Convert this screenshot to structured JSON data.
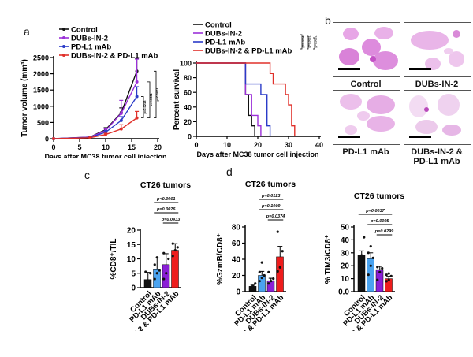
{
  "panels": {
    "a": "a",
    "b": "b",
    "c": "c",
    "d": "d"
  },
  "colors": {
    "control": "#111111",
    "dubs": "#9b30d9",
    "pdl1": "#2a3bc8",
    "combo": "#e0302a",
    "pdl1_bar": "#4aa3f0",
    "dubs_bar": "#8a1fd6",
    "combo_bar": "#ee1c1c"
  },
  "micrographs": {
    "labels": [
      "Control",
      "DUBs-IN-2",
      "PD-L1 mAb",
      "DUBs-IN-2 &\nPD-L1 mAb"
    ],
    "label_lines": [
      [
        "Control"
      ],
      [
        "DUBs-IN-2"
      ],
      [
        "PD-L1 mAb"
      ],
      [
        "DUBs-IN-2 &",
        "PD-L1 mAb"
      ]
    ]
  },
  "chart_data": [
    {
      "id": "tumor-volume",
      "type": "line",
      "title": "",
      "xlabel": "Days after MC38 tumor cell injection",
      "ylabel": "Tumor volume (mm³)",
      "xlim": [
        0,
        20
      ],
      "ylim": [
        0,
        2500
      ],
      "xticks": [
        0,
        5,
        10,
        15,
        20
      ],
      "yticks": [
        0,
        500,
        1000,
        1500,
        2000,
        2500
      ],
      "x": [
        0,
        7,
        10,
        13,
        16
      ],
      "legend": "top-left",
      "series": [
        {
          "name": "Control",
          "values": [
            0,
            50,
            280,
            800,
            2080
          ],
          "errors": [
            0,
            20,
            60,
            150,
            400
          ]
        },
        {
          "name": "DUBs-IN-2",
          "values": [
            0,
            50,
            250,
            780,
            1750
          ],
          "errors": [
            0,
            20,
            60,
            400,
            700
          ]
        },
        {
          "name": "PD-L1 mAb",
          "values": [
            0,
            40,
            200,
            560,
            1300
          ],
          "errors": [
            0,
            15,
            50,
            120,
            300
          ]
        },
        {
          "name": "DUBs-IN-2 & PD-L1 mAb",
          "values": [
            0,
            30,
            130,
            300,
            640
          ],
          "errors": [
            0,
            10,
            40,
            130,
            200
          ]
        }
      ],
      "significance": [
        "p=0.0218",
        "p=0.0001",
        "p<0.0001"
      ]
    },
    {
      "id": "survival",
      "type": "line",
      "title": "",
      "xlabel": "Days after MC38 tumor cell injection",
      "ylabel": "Percent survival",
      "xlim": [
        0,
        40
      ],
      "ylim": [
        0,
        100
      ],
      "xticks": [
        0,
        10,
        20,
        30,
        40
      ],
      "yticks": [
        0,
        20,
        40,
        60,
        80,
        100
      ],
      "legend": "top",
      "series": [
        {
          "name": "Control",
          "steps": [
            [
              0,
              100
            ],
            [
              16,
              57
            ],
            [
              17,
              28.6
            ],
            [
              18,
              14.3
            ],
            [
              19,
              0
            ]
          ]
        },
        {
          "name": "DUBs-IN-2",
          "steps": [
            [
              0,
              100
            ],
            [
              16,
              57
            ],
            [
              18,
              28.6
            ],
            [
              20,
              14.3
            ],
            [
              21,
              0
            ]
          ]
        },
        {
          "name": "PD-L1 mAb",
          "steps": [
            [
              0,
              100
            ],
            [
              16,
              71.4
            ],
            [
              21,
              57
            ],
            [
              23,
              14.3
            ],
            [
              24,
              0
            ]
          ]
        },
        {
          "name": "DUBs-IN-2 & PD-L1 mAb",
          "steps": [
            [
              0,
              100
            ],
            [
              24,
              85.7
            ],
            [
              25,
              71.4
            ],
            [
              29,
              57
            ],
            [
              30,
              42.9
            ],
            [
              31,
              14.3
            ],
            [
              32,
              0
            ]
          ]
        }
      ],
      "significance": [
        "p=0.0004",
        "p=0.0001",
        "p=0.0001"
      ]
    },
    {
      "id": "cd8-til",
      "type": "bar",
      "title": "CT26 tumors",
      "ylabel": "%CD8⁺/TIL",
      "ylim": [
        0,
        20
      ],
      "yticks": [
        0,
        5,
        10,
        15,
        20
      ],
      "categories": [
        "Control",
        "PD-L1 mAb",
        "DUBs-IN-2",
        "DUBs-IN-2 & PD-L1 mAb"
      ],
      "values": [
        2.8,
        6.5,
        8.0,
        13.0
      ],
      "errors": [
        2.5,
        3.8,
        3.8,
        2.3
      ],
      "points": [
        [
          1,
          2,
          5,
          5.5
        ],
        [
          3,
          5,
          6,
          8,
          10.5
        ],
        [
          3,
          5,
          10,
          12
        ],
        [
          11,
          13,
          14,
          15.3
        ]
      ],
      "significance": [
        {
          "label": "p<0.0001",
          "from": 1,
          "to": 3
        },
        {
          "label": "p=0.0076",
          "from": 1,
          "to": 3
        },
        {
          "label": "p=0.0433",
          "from": 2,
          "to": 3
        }
      ]
    },
    {
      "id": "gzmb-cd8",
      "type": "bar",
      "title": "CT26 tumors",
      "ylabel": "%GzmB/CD8⁺",
      "ylim": [
        0,
        80
      ],
      "yticks": [
        0,
        20,
        40,
        60,
        80
      ],
      "categories": [
        "Control",
        "PD-L1 mAb",
        "DUBs-IN-2",
        "DUBs-IN-2 & PD-L1 mAb"
      ],
      "values": [
        6.5,
        20,
        13.5,
        43
      ],
      "errors": [
        1.5,
        5,
        3,
        13
      ],
      "points": [
        [
          5,
          7,
          10
        ],
        [
          13,
          17,
          20,
          24,
          36
        ],
        [
          10,
          13,
          16,
          24
        ],
        [
          25,
          30,
          50,
          74
        ]
      ],
      "significance": [
        {
          "label": "p=0.0123",
          "from": 1,
          "to": 3
        },
        {
          "label": "p=0.1009",
          "from": 1,
          "to": 3
        },
        {
          "label": "p=0.0374",
          "from": 2,
          "to": 3
        }
      ]
    },
    {
      "id": "tim3-cd8",
      "type": "bar",
      "title": "CT26 tumors",
      "ylabel": "% TIM3/CD8⁺",
      "ylim": [
        0,
        50
      ],
      "yticks": [
        0,
        10,
        20,
        30,
        40,
        50
      ],
      "ytick_labels": [
        "0.0",
        "10",
        "20",
        "30",
        "40",
        "50"
      ],
      "categories": [
        "Control",
        "PD-L1 mAb",
        "DUBs-IN-2",
        "DUBs-IN-2 & PD-L1 mAb"
      ],
      "values": [
        28,
        25.5,
        17,
        10
      ],
      "errors": [
        3.5,
        4.5,
        2.5,
        1.8
      ],
      "points": [
        [
          20,
          28,
          42
        ],
        [
          13,
          20,
          26,
          30,
          35
        ],
        [
          9,
          15,
          18,
          19
        ],
        [
          8,
          9,
          12,
          13,
          14
        ]
      ],
      "significance": [
        {
          "label": "p=0.0037",
          "from": 0,
          "to": 3
        },
        {
          "label": "p=0.0095",
          "from": 1,
          "to": 3
        },
        {
          "label": "p=0.0299",
          "from": 2,
          "to": 3
        }
      ]
    }
  ]
}
